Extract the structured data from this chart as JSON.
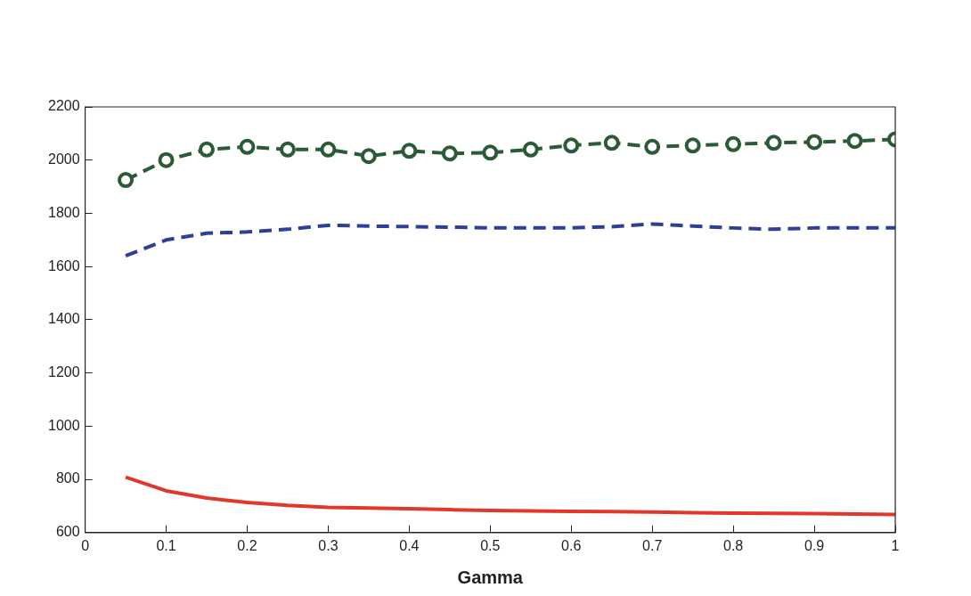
{
  "chart_data": {
    "type": "line",
    "xlabel": "Gamma",
    "x": [
      0.05,
      0.1,
      0.15,
      0.2,
      0.25,
      0.3,
      0.35,
      0.4,
      0.45,
      0.5,
      0.55,
      0.6,
      0.65,
      0.7,
      0.75,
      0.8,
      0.85,
      0.9,
      0.95,
      1
    ],
    "series": [
      {
        "color": "#2a5a36",
        "line_style": "dashed",
        "marker": "circle",
        "values": [
          1925,
          2000,
          2040,
          2050,
          2040,
          2040,
          2015,
          2035,
          2025,
          2028,
          2040,
          2055,
          2065,
          2050,
          2055,
          2060,
          2065,
          2068,
          2072,
          2078
        ]
      },
      {
        "color": "#2e3f9a",
        "line_style": "dashed",
        "marker": "none",
        "values": [
          1640,
          1700,
          1725,
          1730,
          1740,
          1755,
          1752,
          1750,
          1748,
          1745,
          1745,
          1745,
          1750,
          1760,
          1752,
          1745,
          1740,
          1745,
          1745,
          1745
        ]
      },
      {
        "color": "#e0392b",
        "line_style": "solid",
        "marker": "none",
        "values": [
          808,
          757,
          730,
          713,
          702,
          695,
          692,
          690,
          686,
          683,
          681,
          680,
          679,
          677,
          675,
          673,
          672,
          671,
          670,
          668
        ]
      }
    ],
    "xlim": [
      0,
      1
    ],
    "xticks": [
      0,
      0.1,
      0.2,
      0.3,
      0.4,
      0.5,
      0.6,
      0.7,
      0.8,
      0.9,
      1
    ],
    "ylim": [
      600,
      2200
    ],
    "yticks": [
      600,
      800,
      1000,
      1200,
      1400,
      1600,
      1800,
      2000,
      2200
    ],
    "grid": false,
    "legend": false
  }
}
